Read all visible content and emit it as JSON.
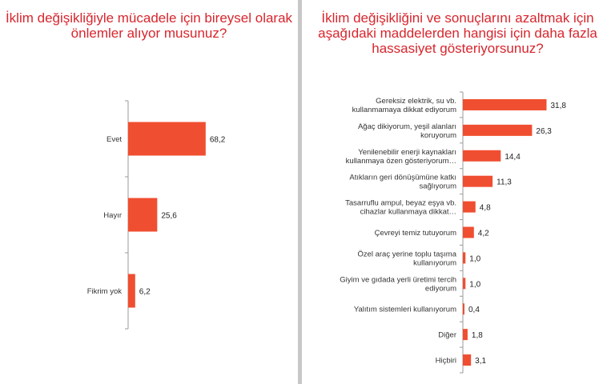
{
  "chart_data": [
    {
      "type": "bar",
      "orientation": "horizontal",
      "title": "İklim değişikliğiyle mücadele için bireysel olarak önlemler alıyor musunuz?",
      "categories": [
        "Evet",
        "Hayır",
        "Fikrim yok"
      ],
      "values": [
        68.2,
        25.6,
        6.2
      ],
      "value_labels": [
        "68,2",
        "25,6",
        "6,2"
      ],
      "xlim": [
        0,
        100
      ],
      "grid": false,
      "color": "#f04e30"
    },
    {
      "type": "bar",
      "orientation": "horizontal",
      "title": "İklim değişikliğini ve sonuçlarını azaltmak için aşağıdaki maddelerden hangisi için daha fazla hassasiyet gösteriyorsunuz?",
      "categories": [
        [
          "Gereksiz elektrik, su vb.",
          "kullanmamaya dikkat ediyorum"
        ],
        [
          "Ağaç dikiyorum, yeşil alanları",
          "koruyorum"
        ],
        [
          "Yenilenebilir enerji kaynakları",
          "kullanmaya özen gösteriyorum…"
        ],
        [
          "Atıkların geri dönüşümüne katkı",
          "sağlıyorum"
        ],
        [
          "Tasarruflu ampul, beyaz eşya vb.",
          "cihazlar kullanmaya dikkat…"
        ],
        [
          "Çevreyi temiz tutuyorum"
        ],
        [
          "Özel araç yerine toplu taşıma",
          "kullanıyorum"
        ],
        [
          "Giyim ve gıdada yerli üretimi tercih",
          "ediyorum"
        ],
        [
          "Yalıtım sistemleri kullanıyorum"
        ],
        [
          "Diğer"
        ],
        [
          "Hiçbiri"
        ]
      ],
      "values": [
        31.8,
        26.3,
        14.4,
        11.3,
        4.8,
        4.2,
        1.0,
        1.0,
        0.4,
        1.8,
        3.1
      ],
      "value_labels": [
        "31,8",
        "26,3",
        "14,4",
        "11,3",
        "4,8",
        "4,2",
        "1,0",
        "1,0",
        "0,4",
        "1,8",
        "3,1"
      ],
      "xlim": [
        0,
        35
      ],
      "grid": false,
      "color": "#f04e30"
    }
  ]
}
